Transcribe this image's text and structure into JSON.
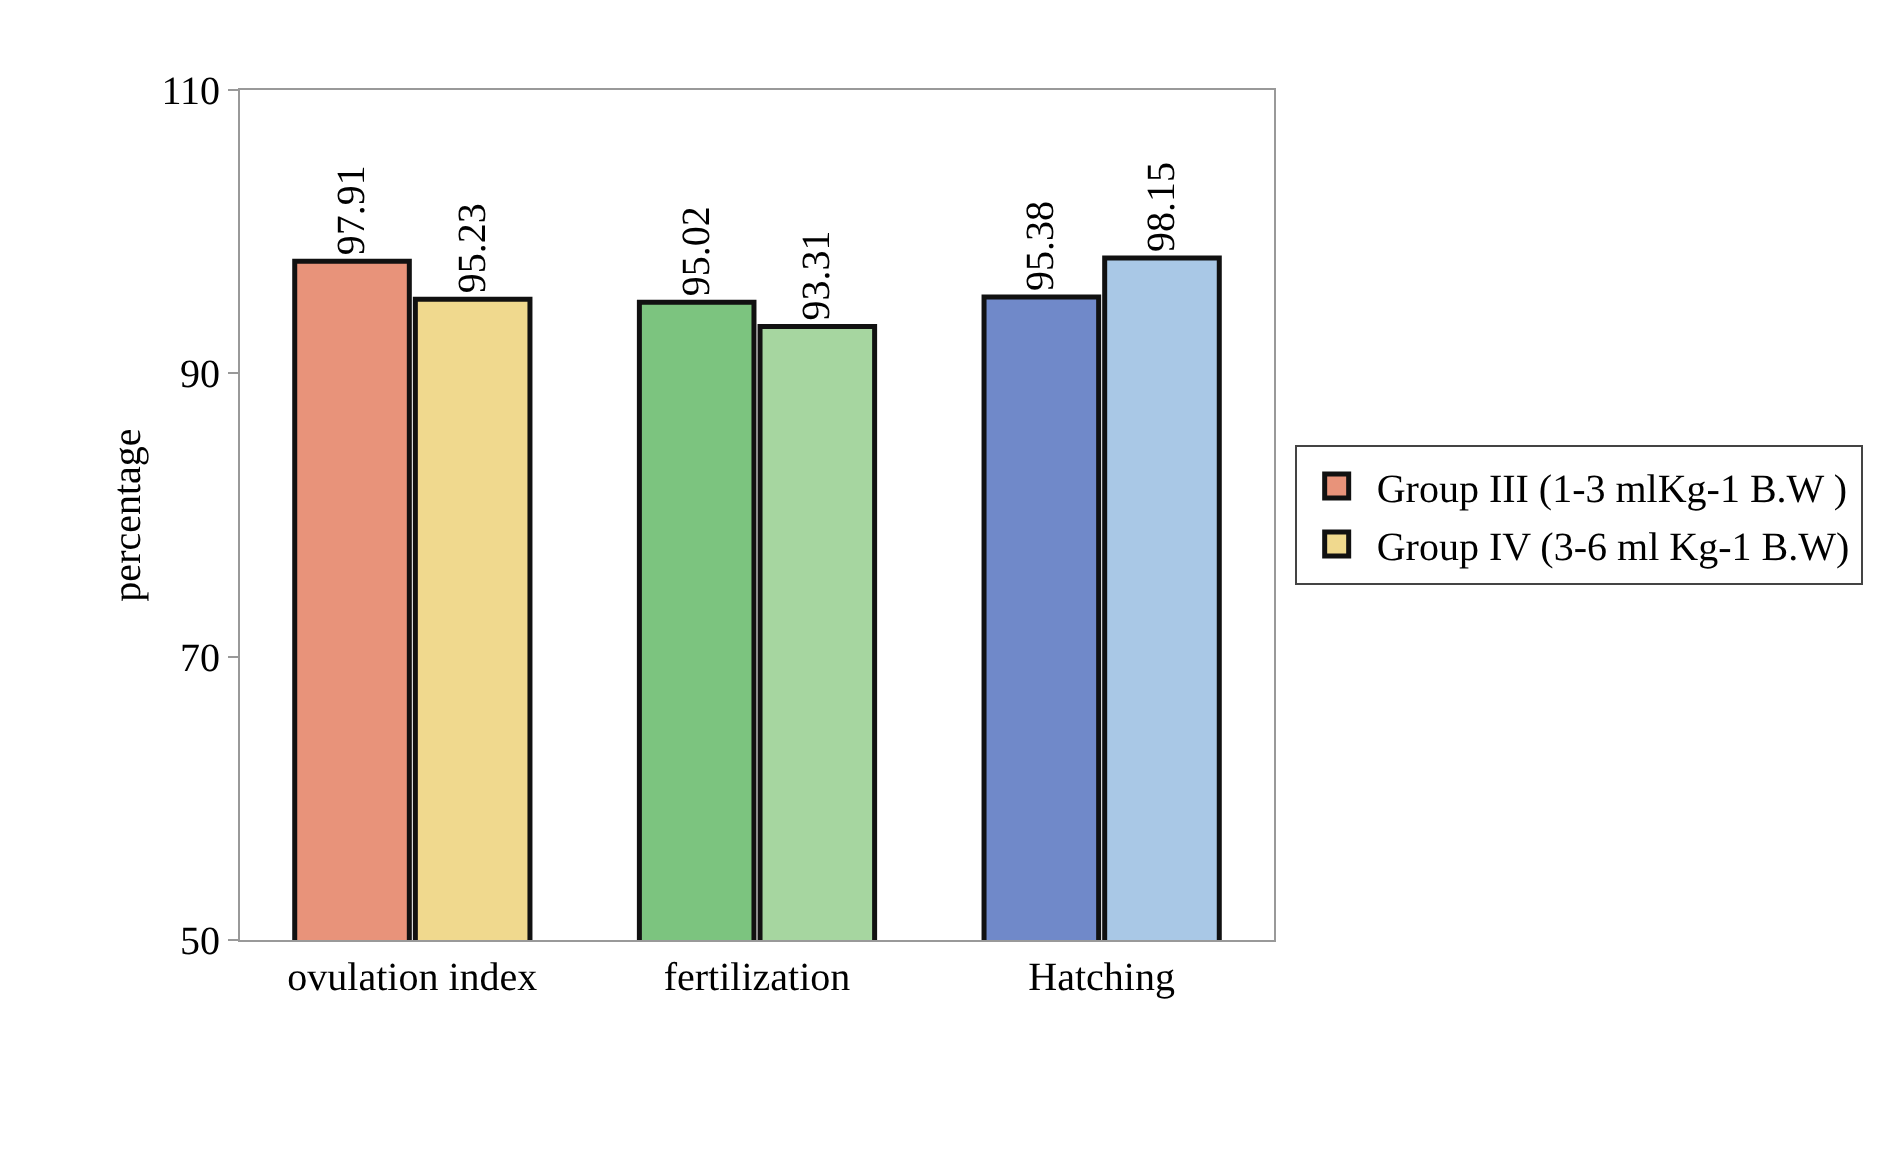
{
  "chart_data": {
    "type": "bar",
    "ylabel": "percentage",
    "categories": [
      "ovulation index",
      "fertilization",
      "Hatching"
    ],
    "series": [
      {
        "name": "Group III (1-3 mlKg-1 B.W )",
        "colors": [
          "#e8937a",
          "#7cc47f",
          "#7089c9"
        ],
        "values": [
          97.91,
          95.02,
          95.38
        ]
      },
      {
        "name": "Group IV (3-6 ml Kg-1 B.W)",
        "colors": [
          "#f0d98e",
          "#a6d6a0",
          "#a9c8e6"
        ],
        "values": [
          95.23,
          93.31,
          98.15
        ]
      }
    ],
    "ylim": [
      50,
      110
    ],
    "yticks": [
      50,
      70,
      90,
      110
    ],
    "grid": false,
    "legend": "right",
    "data_labels": true
  }
}
